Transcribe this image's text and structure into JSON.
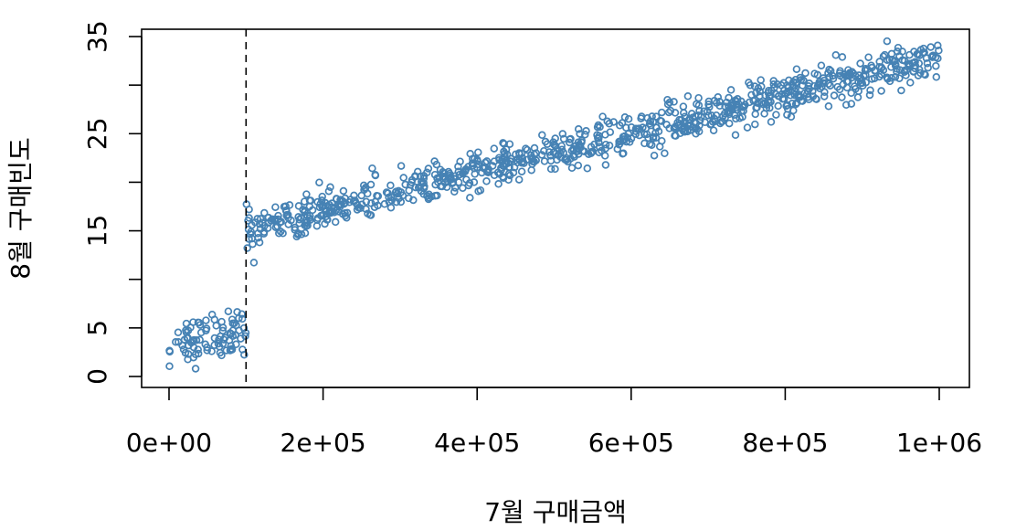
{
  "chart_data": {
    "type": "scatter",
    "title": "",
    "xlabel": "7월 구매금액",
    "ylabel": "8월 구매빈도",
    "xlim": [
      0,
      1000000
    ],
    "ylim": [
      0,
      35
    ],
    "x_ticks": [
      0,
      200000,
      400000,
      600000,
      800000,
      1000000
    ],
    "x_tick_labels": [
      "0e+00",
      "2e+05",
      "4e+05",
      "6e+05",
      "8e+05",
      "1e+06"
    ],
    "y_ticks": [
      0,
      5,
      10,
      15,
      20,
      25,
      30,
      35
    ],
    "y_tick_labels": [
      "0",
      "5",
      "",
      "15",
      "",
      "25",
      "",
      "35"
    ],
    "grid": false,
    "cutoff_line": {
      "x": 100000,
      "style": "dashed"
    },
    "series": [
      {
        "color": "#4682B4",
        "marker": "open-circle",
        "segments": [
          {
            "x_range": [
              0,
              100000
            ],
            "trend": [
              [
                0,
                3.0
              ],
              [
                100000,
                5.0
              ]
            ],
            "spread": 1.2,
            "count": 90
          },
          {
            "x_range": [
              100000,
              1000000
            ],
            "trend": [
              [
                100000,
                15.0
              ],
              [
                1000000,
                33.0
              ]
            ],
            "spread": 1.0,
            "count": 900
          }
        ]
      }
    ]
  }
}
